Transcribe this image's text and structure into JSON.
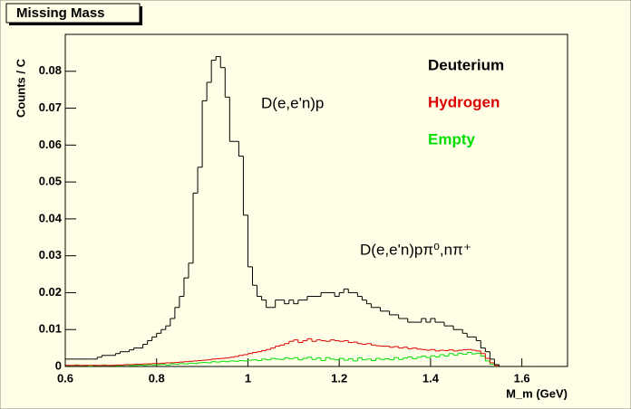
{
  "chart_data": {
    "type": "histogram",
    "title": "Missing Mass",
    "xlabel": "M_m (GeV)",
    "ylabel": "Counts / C",
    "annotations": [
      "D(e,e'n)p",
      "D(e,e'n)pπ⁰,nπ⁺"
    ],
    "xlim": [
      0.6,
      1.7
    ],
    "ylim": [
      0,
      0.09
    ],
    "xticks": [
      0.6,
      0.8,
      1,
      1.2,
      1.4,
      1.6
    ],
    "yticks": [
      0,
      0.01,
      0.02,
      0.03,
      0.04,
      0.05,
      0.06,
      0.07,
      0.08
    ],
    "bins": [
      0.6,
      0.61,
      0.62,
      0.63,
      0.64,
      0.65,
      0.66,
      0.67,
      0.68,
      0.69,
      0.7,
      0.71,
      0.72,
      0.73,
      0.74,
      0.75,
      0.76,
      0.77,
      0.78,
      0.79,
      0.8,
      0.81,
      0.82,
      0.83,
      0.84,
      0.85,
      0.86,
      0.87,
      0.88,
      0.89,
      0.9,
      0.91,
      0.92,
      0.93,
      0.94,
      0.95,
      0.96,
      0.97,
      0.98,
      0.99,
      1,
      1.01,
      1.02,
      1.03,
      1.04,
      1.05,
      1.06,
      1.07,
      1.08,
      1.09,
      1.1,
      1.11,
      1.12,
      1.13,
      1.14,
      1.15,
      1.16,
      1.17,
      1.18,
      1.19,
      1.2,
      1.21,
      1.22,
      1.23,
      1.24,
      1.25,
      1.26,
      1.27,
      1.28,
      1.29,
      1.3,
      1.31,
      1.32,
      1.33,
      1.34,
      1.35,
      1.36,
      1.37,
      1.38,
      1.39,
      1.4,
      1.41,
      1.42,
      1.43,
      1.44,
      1.45,
      1.46,
      1.47,
      1.48,
      1.49,
      1.5,
      1.51,
      1.52,
      1.53,
      1.54,
      1.55,
      1.56,
      1.57,
      1.58,
      1.59,
      1.6,
      1.61,
      1.62,
      1.63,
      1.64,
      1.65,
      1.66,
      1.67,
      1.68,
      1.69,
      1.7
    ],
    "series": [
      {
        "name": "Deuterium",
        "color": "#000000",
        "values": [
          0.002,
          0.002,
          0.002,
          0.002,
          0.002,
          0.002,
          0.002,
          0.0025,
          0.003,
          0.003,
          0.003,
          0.0035,
          0.004,
          0.004,
          0.0045,
          0.005,
          0.005,
          0.006,
          0.007,
          0.008,
          0.009,
          0.01,
          0.011,
          0.013,
          0.016,
          0.019,
          0.024,
          0.028,
          0.047,
          0.054,
          0.072,
          0.077,
          0.083,
          0.084,
          0.081,
          0.073,
          0.061,
          0.061,
          0.057,
          0.041,
          0.027,
          0.022,
          0.019,
          0.018,
          0.016,
          0.016,
          0.018,
          0.018,
          0.017,
          0.018,
          0.017,
          0.018,
          0.018,
          0.019,
          0.019,
          0.019,
          0.02,
          0.02,
          0.02,
          0.019,
          0.02,
          0.021,
          0.02,
          0.02,
          0.019,
          0.018,
          0.017,
          0.016,
          0.016,
          0.015,
          0.015,
          0.014,
          0.014,
          0.013,
          0.013,
          0.012,
          0.012,
          0.012,
          0.013,
          0.012,
          0.013,
          0.012,
          0.012,
          0.011,
          0.011,
          0.01,
          0.01,
          0.009,
          0.008,
          0.008,
          0.007,
          0.005,
          0.004,
          0.002,
          0.0005,
          0,
          0,
          0,
          0,
          0,
          0,
          0,
          0,
          0,
          0,
          0,
          0,
          0,
          0,
          0
        ]
      },
      {
        "name": "Hydrogen",
        "color": "#dd0000",
        "values": [
          0.0003,
          0.0003,
          0.0003,
          0.0003,
          0.0003,
          0.0003,
          0.0003,
          0.0003,
          0.0003,
          0.0003,
          0.0003,
          0.0004,
          0.0004,
          0.0005,
          0.0005,
          0.0006,
          0.0006,
          0.0007,
          0.0007,
          0.0008,
          0.0008,
          0.0009,
          0.001,
          0.001,
          0.0011,
          0.0012,
          0.0013,
          0.0014,
          0.0015,
          0.0016,
          0.0017,
          0.0018,
          0.002,
          0.0021,
          0.0022,
          0.0023,
          0.0025,
          0.0027,
          0.003,
          0.0032,
          0.0035,
          0.0038,
          0.004,
          0.0043,
          0.0046,
          0.005,
          0.0055,
          0.0058,
          0.0062,
          0.0068,
          0.0072,
          0.0065,
          0.007,
          0.0075,
          0.0068,
          0.0072,
          0.007,
          0.0068,
          0.0072,
          0.007,
          0.0068,
          0.007,
          0.0065,
          0.0066,
          0.0062,
          0.006,
          0.0062,
          0.0058,
          0.0056,
          0.0055,
          0.0055,
          0.0052,
          0.0054,
          0.005,
          0.0052,
          0.0048,
          0.005,
          0.0047,
          0.0046,
          0.0044,
          0.0046,
          0.0042,
          0.0044,
          0.0043,
          0.0045,
          0.0042,
          0.0044,
          0.0045,
          0.0046,
          0.0044,
          0.0042,
          0.0035,
          0.0022,
          0.001,
          0.0002,
          0,
          0,
          0,
          0,
          0,
          0,
          0,
          0,
          0,
          0,
          0,
          0,
          0,
          0,
          0
        ]
      },
      {
        "name": "Empty",
        "color": "#00dd00",
        "values": [
          0.0003,
          0.0002,
          0.0004,
          0.0002,
          0.0003,
          0.0001,
          0.0003,
          0.0002,
          0.0004,
          0.0002,
          0.0003,
          0.0002,
          0.0003,
          0.0004,
          0.0002,
          0.0003,
          0.0004,
          0.0003,
          0.0005,
          0.0004,
          0.0005,
          0.0006,
          0.0004,
          0.0007,
          0.0006,
          0.0008,
          0.0007,
          0.0009,
          0.0008,
          0.001,
          0.0011,
          0.001,
          0.0013,
          0.0012,
          0.0014,
          0.0013,
          0.0015,
          0.0014,
          0.0016,
          0.0015,
          0.0017,
          0.0018,
          0.0016,
          0.002,
          0.0018,
          0.0022,
          0.002,
          0.0019,
          0.0023,
          0.0021,
          0.0024,
          0.0018,
          0.0022,
          0.0025,
          0.0019,
          0.0023,
          0.0016,
          0.0024,
          0.002,
          0.0018,
          0.0022,
          0.0017,
          0.0021,
          0.0015,
          0.0023,
          0.0018,
          0.002,
          0.0016,
          0.0022,
          0.0019,
          0.0021,
          0.0018,
          0.0024,
          0.0019,
          0.0023,
          0.0026,
          0.0021,
          0.0025,
          0.0028,
          0.0024,
          0.0029,
          0.0026,
          0.0032,
          0.0028,
          0.0035,
          0.0031,
          0.0036,
          0.0033,
          0.0038,
          0.0034,
          0.0036,
          0.0028,
          0.0015,
          0.0006,
          0.0001,
          0,
          0,
          0,
          0,
          0,
          0,
          0,
          0,
          0,
          0,
          0,
          0,
          0,
          0,
          0
        ]
      }
    ]
  }
}
